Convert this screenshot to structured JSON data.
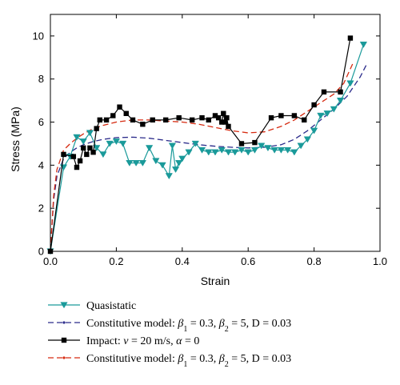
{
  "chart_data": {
    "type": "line",
    "xlabel": "Strain",
    "ylabel": "Stress (MPa)",
    "xlim": [
      0,
      1.0
    ],
    "ylim": [
      0,
      11
    ],
    "xticks": [
      0.0,
      0.2,
      0.4,
      0.6,
      0.8,
      1.0
    ],
    "xtick_labels": [
      "0.0",
      "0.2",
      "0.4",
      "0.6",
      "0.8",
      "1.0"
    ],
    "yticks": [
      0,
      2,
      4,
      6,
      8,
      10
    ],
    "ytick_labels": [
      "0",
      "2",
      "4",
      "6",
      "8",
      "10"
    ],
    "grid": false,
    "legend_position": "below",
    "colors": {
      "quasistatic": "#1a9a9a",
      "model_quasi": "#2a2a8a",
      "impact": "#000000",
      "model_impact": "#d62a10"
    },
    "series": [
      {
        "key": "quasistatic",
        "name": "Quasistatic",
        "style": "line-triangle-down",
        "x": [
          0.0,
          0.04,
          0.06,
          0.08,
          0.1,
          0.12,
          0.14,
          0.16,
          0.18,
          0.2,
          0.22,
          0.24,
          0.26,
          0.28,
          0.3,
          0.32,
          0.34,
          0.36,
          0.37,
          0.38,
          0.39,
          0.4,
          0.42,
          0.44,
          0.46,
          0.48,
          0.5,
          0.52,
          0.54,
          0.56,
          0.58,
          0.6,
          0.62,
          0.64,
          0.66,
          0.68,
          0.7,
          0.72,
          0.74,
          0.76,
          0.78,
          0.8,
          0.82,
          0.84,
          0.86,
          0.88,
          0.91,
          0.95
        ],
        "y": [
          0.0,
          3.9,
          4.4,
          5.3,
          5.1,
          5.5,
          4.8,
          4.5,
          5.0,
          5.1,
          5.0,
          4.1,
          4.1,
          4.1,
          4.8,
          4.2,
          4.0,
          3.5,
          4.9,
          3.8,
          4.1,
          4.3,
          4.6,
          5.0,
          4.7,
          4.6,
          4.6,
          4.7,
          4.6,
          4.6,
          4.7,
          4.6,
          4.7,
          4.9,
          4.8,
          4.7,
          4.7,
          4.7,
          4.6,
          4.9,
          5.2,
          5.6,
          6.3,
          6.4,
          6.6,
          7.0,
          7.8,
          9.6
        ]
      },
      {
        "key": "model_quasi",
        "name": "Constitutive model: β1 = 0.3, β2 = 5, D = 0.03",
        "style": "dash",
        "x": [
          0.0,
          0.01,
          0.02,
          0.04,
          0.06,
          0.08,
          0.1,
          0.13,
          0.16,
          0.2,
          0.25,
          0.3,
          0.35,
          0.4,
          0.45,
          0.5,
          0.55,
          0.6,
          0.65,
          0.7,
          0.74,
          0.78,
          0.82,
          0.86,
          0.9,
          0.94,
          0.96
        ],
        "y": [
          0.0,
          2.4,
          3.5,
          4.3,
          4.6,
          4.8,
          4.95,
          5.1,
          5.2,
          5.28,
          5.3,
          5.25,
          5.15,
          5.05,
          4.95,
          4.88,
          4.83,
          4.8,
          4.83,
          4.95,
          5.2,
          5.6,
          6.1,
          6.6,
          7.2,
          8.1,
          8.7
        ]
      },
      {
        "key": "impact",
        "name": "Impact: ν = 20 m/s, α = 0",
        "style": "line-square",
        "x": [
          0.0,
          0.04,
          0.07,
          0.08,
          0.09,
          0.1,
          0.11,
          0.12,
          0.13,
          0.14,
          0.15,
          0.17,
          0.19,
          0.21,
          0.23,
          0.25,
          0.28,
          0.31,
          0.35,
          0.39,
          0.43,
          0.46,
          0.48,
          0.5,
          0.51,
          0.52,
          0.525,
          0.53,
          0.535,
          0.54,
          0.58,
          0.62,
          0.67,
          0.7,
          0.74,
          0.77,
          0.8,
          0.83,
          0.88,
          0.91
        ],
        "y": [
          0.0,
          4.5,
          4.4,
          3.9,
          4.2,
          4.8,
          4.5,
          4.8,
          4.6,
          5.7,
          6.1,
          6.1,
          6.3,
          6.7,
          6.4,
          6.1,
          5.9,
          6.1,
          6.1,
          6.2,
          6.1,
          6.2,
          6.1,
          6.3,
          6.2,
          6.0,
          6.4,
          6.0,
          6.2,
          5.8,
          5.0,
          5.05,
          6.2,
          6.3,
          6.3,
          6.1,
          6.8,
          7.4,
          7.4,
          9.9
        ]
      },
      {
        "key": "model_impact",
        "name": "Constitutive model: β1 = 0.3, β2 = 5, D = 0.03",
        "style": "dash",
        "x": [
          0.0,
          0.01,
          0.02,
          0.04,
          0.06,
          0.08,
          0.1,
          0.13,
          0.16,
          0.2,
          0.25,
          0.3,
          0.35,
          0.4,
          0.45,
          0.5,
          0.55,
          0.6,
          0.65,
          0.7,
          0.74,
          0.78,
          0.82,
          0.86,
          0.89,
          0.92
        ],
        "y": [
          0.0,
          2.6,
          3.8,
          4.7,
          5.0,
          5.25,
          5.45,
          5.7,
          5.85,
          6.0,
          6.1,
          6.1,
          6.05,
          6.0,
          5.9,
          5.75,
          5.6,
          5.5,
          5.55,
          5.8,
          6.1,
          6.5,
          6.9,
          7.3,
          7.8,
          8.8
        ]
      }
    ]
  },
  "legend": {
    "items": [
      {
        "key": "quasistatic",
        "segments": [
          [
            "Quasistatic",
            ""
          ]
        ]
      },
      {
        "key": "model_quasi",
        "segments": [
          [
            "Constitutive model: ",
            ""
          ],
          [
            "β",
            "it"
          ],
          [
            "1",
            "sub"
          ],
          [
            " = 0.3, ",
            ""
          ],
          [
            "β",
            "it"
          ],
          [
            "2",
            "sub"
          ],
          [
            " = 5, D = 0.03",
            ""
          ]
        ]
      },
      {
        "key": "impact",
        "segments": [
          [
            "Impact: ",
            ""
          ],
          [
            "ν",
            "it"
          ],
          [
            " = 20 m/s, ",
            ""
          ],
          [
            "α",
            "it"
          ],
          [
            " = 0",
            ""
          ]
        ]
      },
      {
        "key": "model_impact",
        "segments": [
          [
            "Constitutive model: ",
            ""
          ],
          [
            "β",
            "it"
          ],
          [
            "1",
            "sub"
          ],
          [
            " = 0.3, ",
            ""
          ],
          [
            "β",
            "it"
          ],
          [
            "2",
            "sub"
          ],
          [
            " = 5, D = 0.03",
            ""
          ]
        ]
      }
    ]
  }
}
